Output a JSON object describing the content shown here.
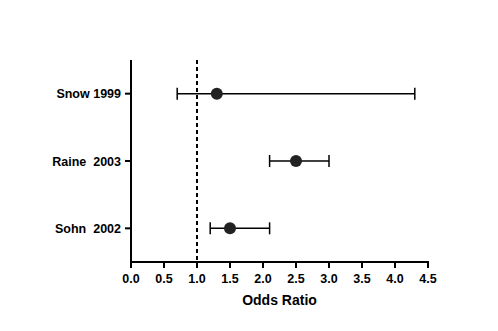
{
  "chart_data": {
    "type": "forest",
    "categories": [
      "Snow 1999",
      "Raine  2003",
      "Sohn  2002"
    ],
    "values": [
      1.3,
      2.5,
      1.5
    ],
    "ci_lower": [
      0.7,
      2.1,
      1.2
    ],
    "ci_upper": [
      4.3,
      3.0,
      2.1
    ],
    "reference_line": 1,
    "x_label": "Odds Ratio",
    "xlim": [
      0,
      4.5
    ],
    "xticks": [
      {
        "value": 0,
        "label": "0.0"
      },
      0.5,
      {
        "value": 1,
        "label": "1.0"
      },
      1.5,
      {
        "value": 2,
        "label": "2.0"
      },
      2.5,
      {
        "value": 3,
        "label": "3.0"
      },
      3.5,
      {
        "value": 4,
        "label": "4.0"
      },
      4.5
    ],
    "orientation": "horizontal",
    "color": "#222222",
    "marker": "circle"
  }
}
